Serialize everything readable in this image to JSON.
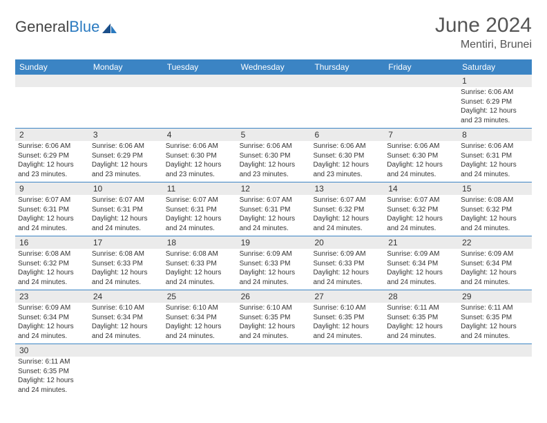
{
  "header": {
    "logo_text1": "General",
    "logo_text2": "Blue",
    "month_title": "June 2024",
    "location": "Mentiri, Brunei"
  },
  "colors": {
    "header_bg": "#3b84c4",
    "header_text": "#ffffff",
    "row_separator": "#3b84c4",
    "daynum_bg": "#ebebeb",
    "body_text": "#333333",
    "title_text": "#555555",
    "logo_gray": "#444444",
    "logo_blue": "#2a7ac0",
    "page_bg": "#ffffff"
  },
  "typography": {
    "month_title_fontsize": 30,
    "location_fontsize": 16,
    "logo_fontsize": 22,
    "weekday_fontsize": 12,
    "daynum_fontsize": 12,
    "detail_fontsize": 10,
    "font_family": "Arial"
  },
  "weekdays": [
    "Sunday",
    "Monday",
    "Tuesday",
    "Wednesday",
    "Thursday",
    "Friday",
    "Saturday"
  ],
  "weeks": [
    [
      {
        "day": "",
        "sunrise": "",
        "sunset": "",
        "daylight": ""
      },
      {
        "day": "",
        "sunrise": "",
        "sunset": "",
        "daylight": ""
      },
      {
        "day": "",
        "sunrise": "",
        "sunset": "",
        "daylight": ""
      },
      {
        "day": "",
        "sunrise": "",
        "sunset": "",
        "daylight": ""
      },
      {
        "day": "",
        "sunrise": "",
        "sunset": "",
        "daylight": ""
      },
      {
        "day": "",
        "sunrise": "",
        "sunset": "",
        "daylight": ""
      },
      {
        "day": "1",
        "sunrise": "Sunrise: 6:06 AM",
        "sunset": "Sunset: 6:29 PM",
        "daylight": "Daylight: 12 hours and 23 minutes."
      }
    ],
    [
      {
        "day": "2",
        "sunrise": "Sunrise: 6:06 AM",
        "sunset": "Sunset: 6:29 PM",
        "daylight": "Daylight: 12 hours and 23 minutes."
      },
      {
        "day": "3",
        "sunrise": "Sunrise: 6:06 AM",
        "sunset": "Sunset: 6:29 PM",
        "daylight": "Daylight: 12 hours and 23 minutes."
      },
      {
        "day": "4",
        "sunrise": "Sunrise: 6:06 AM",
        "sunset": "Sunset: 6:30 PM",
        "daylight": "Daylight: 12 hours and 23 minutes."
      },
      {
        "day": "5",
        "sunrise": "Sunrise: 6:06 AM",
        "sunset": "Sunset: 6:30 PM",
        "daylight": "Daylight: 12 hours and 23 minutes."
      },
      {
        "day": "6",
        "sunrise": "Sunrise: 6:06 AM",
        "sunset": "Sunset: 6:30 PM",
        "daylight": "Daylight: 12 hours and 23 minutes."
      },
      {
        "day": "7",
        "sunrise": "Sunrise: 6:06 AM",
        "sunset": "Sunset: 6:30 PM",
        "daylight": "Daylight: 12 hours and 24 minutes."
      },
      {
        "day": "8",
        "sunrise": "Sunrise: 6:06 AM",
        "sunset": "Sunset: 6:31 PM",
        "daylight": "Daylight: 12 hours and 24 minutes."
      }
    ],
    [
      {
        "day": "9",
        "sunrise": "Sunrise: 6:07 AM",
        "sunset": "Sunset: 6:31 PM",
        "daylight": "Daylight: 12 hours and 24 minutes."
      },
      {
        "day": "10",
        "sunrise": "Sunrise: 6:07 AM",
        "sunset": "Sunset: 6:31 PM",
        "daylight": "Daylight: 12 hours and 24 minutes."
      },
      {
        "day": "11",
        "sunrise": "Sunrise: 6:07 AM",
        "sunset": "Sunset: 6:31 PM",
        "daylight": "Daylight: 12 hours and 24 minutes."
      },
      {
        "day": "12",
        "sunrise": "Sunrise: 6:07 AM",
        "sunset": "Sunset: 6:31 PM",
        "daylight": "Daylight: 12 hours and 24 minutes."
      },
      {
        "day": "13",
        "sunrise": "Sunrise: 6:07 AM",
        "sunset": "Sunset: 6:32 PM",
        "daylight": "Daylight: 12 hours and 24 minutes."
      },
      {
        "day": "14",
        "sunrise": "Sunrise: 6:07 AM",
        "sunset": "Sunset: 6:32 PM",
        "daylight": "Daylight: 12 hours and 24 minutes."
      },
      {
        "day": "15",
        "sunrise": "Sunrise: 6:08 AM",
        "sunset": "Sunset: 6:32 PM",
        "daylight": "Daylight: 12 hours and 24 minutes."
      }
    ],
    [
      {
        "day": "16",
        "sunrise": "Sunrise: 6:08 AM",
        "sunset": "Sunset: 6:32 PM",
        "daylight": "Daylight: 12 hours and 24 minutes."
      },
      {
        "day": "17",
        "sunrise": "Sunrise: 6:08 AM",
        "sunset": "Sunset: 6:33 PM",
        "daylight": "Daylight: 12 hours and 24 minutes."
      },
      {
        "day": "18",
        "sunrise": "Sunrise: 6:08 AM",
        "sunset": "Sunset: 6:33 PM",
        "daylight": "Daylight: 12 hours and 24 minutes."
      },
      {
        "day": "19",
        "sunrise": "Sunrise: 6:09 AM",
        "sunset": "Sunset: 6:33 PM",
        "daylight": "Daylight: 12 hours and 24 minutes."
      },
      {
        "day": "20",
        "sunrise": "Sunrise: 6:09 AM",
        "sunset": "Sunset: 6:33 PM",
        "daylight": "Daylight: 12 hours and 24 minutes."
      },
      {
        "day": "21",
        "sunrise": "Sunrise: 6:09 AM",
        "sunset": "Sunset: 6:34 PM",
        "daylight": "Daylight: 12 hours and 24 minutes."
      },
      {
        "day": "22",
        "sunrise": "Sunrise: 6:09 AM",
        "sunset": "Sunset: 6:34 PM",
        "daylight": "Daylight: 12 hours and 24 minutes."
      }
    ],
    [
      {
        "day": "23",
        "sunrise": "Sunrise: 6:09 AM",
        "sunset": "Sunset: 6:34 PM",
        "daylight": "Daylight: 12 hours and 24 minutes."
      },
      {
        "day": "24",
        "sunrise": "Sunrise: 6:10 AM",
        "sunset": "Sunset: 6:34 PM",
        "daylight": "Daylight: 12 hours and 24 minutes."
      },
      {
        "day": "25",
        "sunrise": "Sunrise: 6:10 AM",
        "sunset": "Sunset: 6:34 PM",
        "daylight": "Daylight: 12 hours and 24 minutes."
      },
      {
        "day": "26",
        "sunrise": "Sunrise: 6:10 AM",
        "sunset": "Sunset: 6:35 PM",
        "daylight": "Daylight: 12 hours and 24 minutes."
      },
      {
        "day": "27",
        "sunrise": "Sunrise: 6:10 AM",
        "sunset": "Sunset: 6:35 PM",
        "daylight": "Daylight: 12 hours and 24 minutes."
      },
      {
        "day": "28",
        "sunrise": "Sunrise: 6:11 AM",
        "sunset": "Sunset: 6:35 PM",
        "daylight": "Daylight: 12 hours and 24 minutes."
      },
      {
        "day": "29",
        "sunrise": "Sunrise: 6:11 AM",
        "sunset": "Sunset: 6:35 PM",
        "daylight": "Daylight: 12 hours and 24 minutes."
      }
    ],
    [
      {
        "day": "30",
        "sunrise": "Sunrise: 6:11 AM",
        "sunset": "Sunset: 6:35 PM",
        "daylight": "Daylight: 12 hours and 24 minutes."
      },
      {
        "day": "",
        "sunrise": "",
        "sunset": "",
        "daylight": ""
      },
      {
        "day": "",
        "sunrise": "",
        "sunset": "",
        "daylight": ""
      },
      {
        "day": "",
        "sunrise": "",
        "sunset": "",
        "daylight": ""
      },
      {
        "day": "",
        "sunrise": "",
        "sunset": "",
        "daylight": ""
      },
      {
        "day": "",
        "sunrise": "",
        "sunset": "",
        "daylight": ""
      },
      {
        "day": "",
        "sunrise": "",
        "sunset": "",
        "daylight": ""
      }
    ]
  ]
}
